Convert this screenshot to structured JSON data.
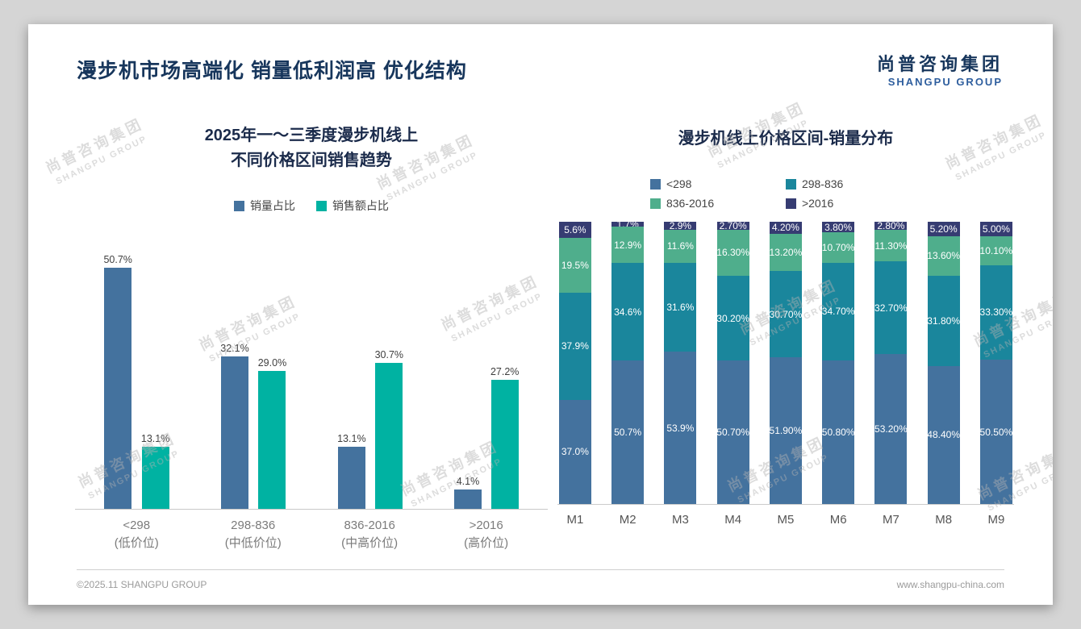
{
  "slide": {
    "title": "漫步机市场高端化 销量低利润高 优化结构",
    "logo": {
      "cn": "尚普咨询集团",
      "en": "SHANGPU GROUP"
    },
    "watermark": {
      "line1": "尚普咨询集团",
      "line2": "SHANGPU GROUP"
    },
    "footer": {
      "left": "©2025.11 SHANGPU GROUP",
      "right": "www.shangpu-china.com"
    }
  },
  "colors": {
    "volume_blue": "#44729E",
    "amount_teal": "#00B2A2",
    "price_lt298": "#44729E",
    "price_298_836": "#1A869C",
    "price_836_2016": "#4FAE8C",
    "price_gt2016": "#363C72",
    "title_navy": "#17365C"
  },
  "chart_data": [
    {
      "type": "bar",
      "title": "2025年一～三季度漫步机线上 不同价格区间销售趋势",
      "title_lines": [
        "2025年一～三季度漫步机线上",
        "不同价格区间销售趋势"
      ],
      "categories": [
        "<298",
        "298-836",
        "836-2016",
        ">2016"
      ],
      "category_sublabels": [
        "(低价位)",
        "(中低价位)",
        "(中高价位)",
        "(高价位)"
      ],
      "xlabel": "",
      "ylabel": "",
      "ylim": [
        0,
        55
      ],
      "grid": false,
      "legend_position": "top",
      "series": [
        {
          "name": "销量占比",
          "color": "#44729E",
          "values": [
            50.7,
            32.1,
            13.1,
            4.1
          ],
          "labels": [
            "50.7%",
            "32.1%",
            "13.1%",
            "4.1%"
          ]
        },
        {
          "name": "销售额占比",
          "color": "#00B2A2",
          "values": [
            13.1,
            29.0,
            30.7,
            27.2
          ],
          "labels": [
            "13.1%",
            "29.0%",
            "30.7%",
            "27.2%"
          ]
        }
      ]
    },
    {
      "type": "bar",
      "stacked": true,
      "percent_stacked": true,
      "title": "漫步机线上价格区间-销量分布",
      "categories": [
        "M1",
        "M2",
        "M3",
        "M4",
        "M5",
        "M6",
        "M7",
        "M8",
        "M9"
      ],
      "xlabel": "",
      "ylabel": "",
      "ylim": [
        0,
        100
      ],
      "grid": false,
      "legend_position": "top",
      "series": [
        {
          "name": "<298",
          "color": "#44729E",
          "values": [
            37.0,
            50.7,
            53.9,
            50.7,
            51.9,
            50.8,
            53.2,
            48.4,
            50.5
          ],
          "labels": [
            "37.0%",
            "50.7%",
            "53.9%",
            "50.70%",
            "51.90%",
            "50.80%",
            "53.20%",
            "48.40%",
            "50.50%"
          ]
        },
        {
          "name": "298-836",
          "color": "#1A869C",
          "values": [
            37.9,
            34.6,
            31.6,
            30.2,
            30.7,
            34.7,
            32.7,
            31.8,
            33.3
          ],
          "labels": [
            "37.9%",
            "34.6%",
            "31.6%",
            "30.20%",
            "30.70%",
            "34.70%",
            "32.70%",
            "31.80%",
            "33.30%"
          ]
        },
        {
          "name": "836-2016",
          "color": "#4FAE8C",
          "values": [
            19.5,
            12.9,
            11.6,
            16.3,
            13.2,
            10.7,
            11.3,
            13.6,
            10.1
          ],
          "labels": [
            "19.5%",
            "12.9%",
            "11.6%",
            "16.30%",
            "13.20%",
            "10.70%",
            "11.30%",
            "13.60%",
            "10.10%"
          ]
        },
        {
          "name": ">2016",
          "color": "#363C72",
          "values": [
            5.6,
            1.7,
            2.9,
            2.7,
            4.2,
            3.8,
            2.8,
            5.2,
            5.0
          ],
          "labels": [
            "5.6%",
            "1.7%",
            "2.9%",
            "2.70%",
            "4.20%",
            "3.80%",
            "2.80%",
            "5.20%",
            "5.00%"
          ]
        }
      ]
    }
  ]
}
